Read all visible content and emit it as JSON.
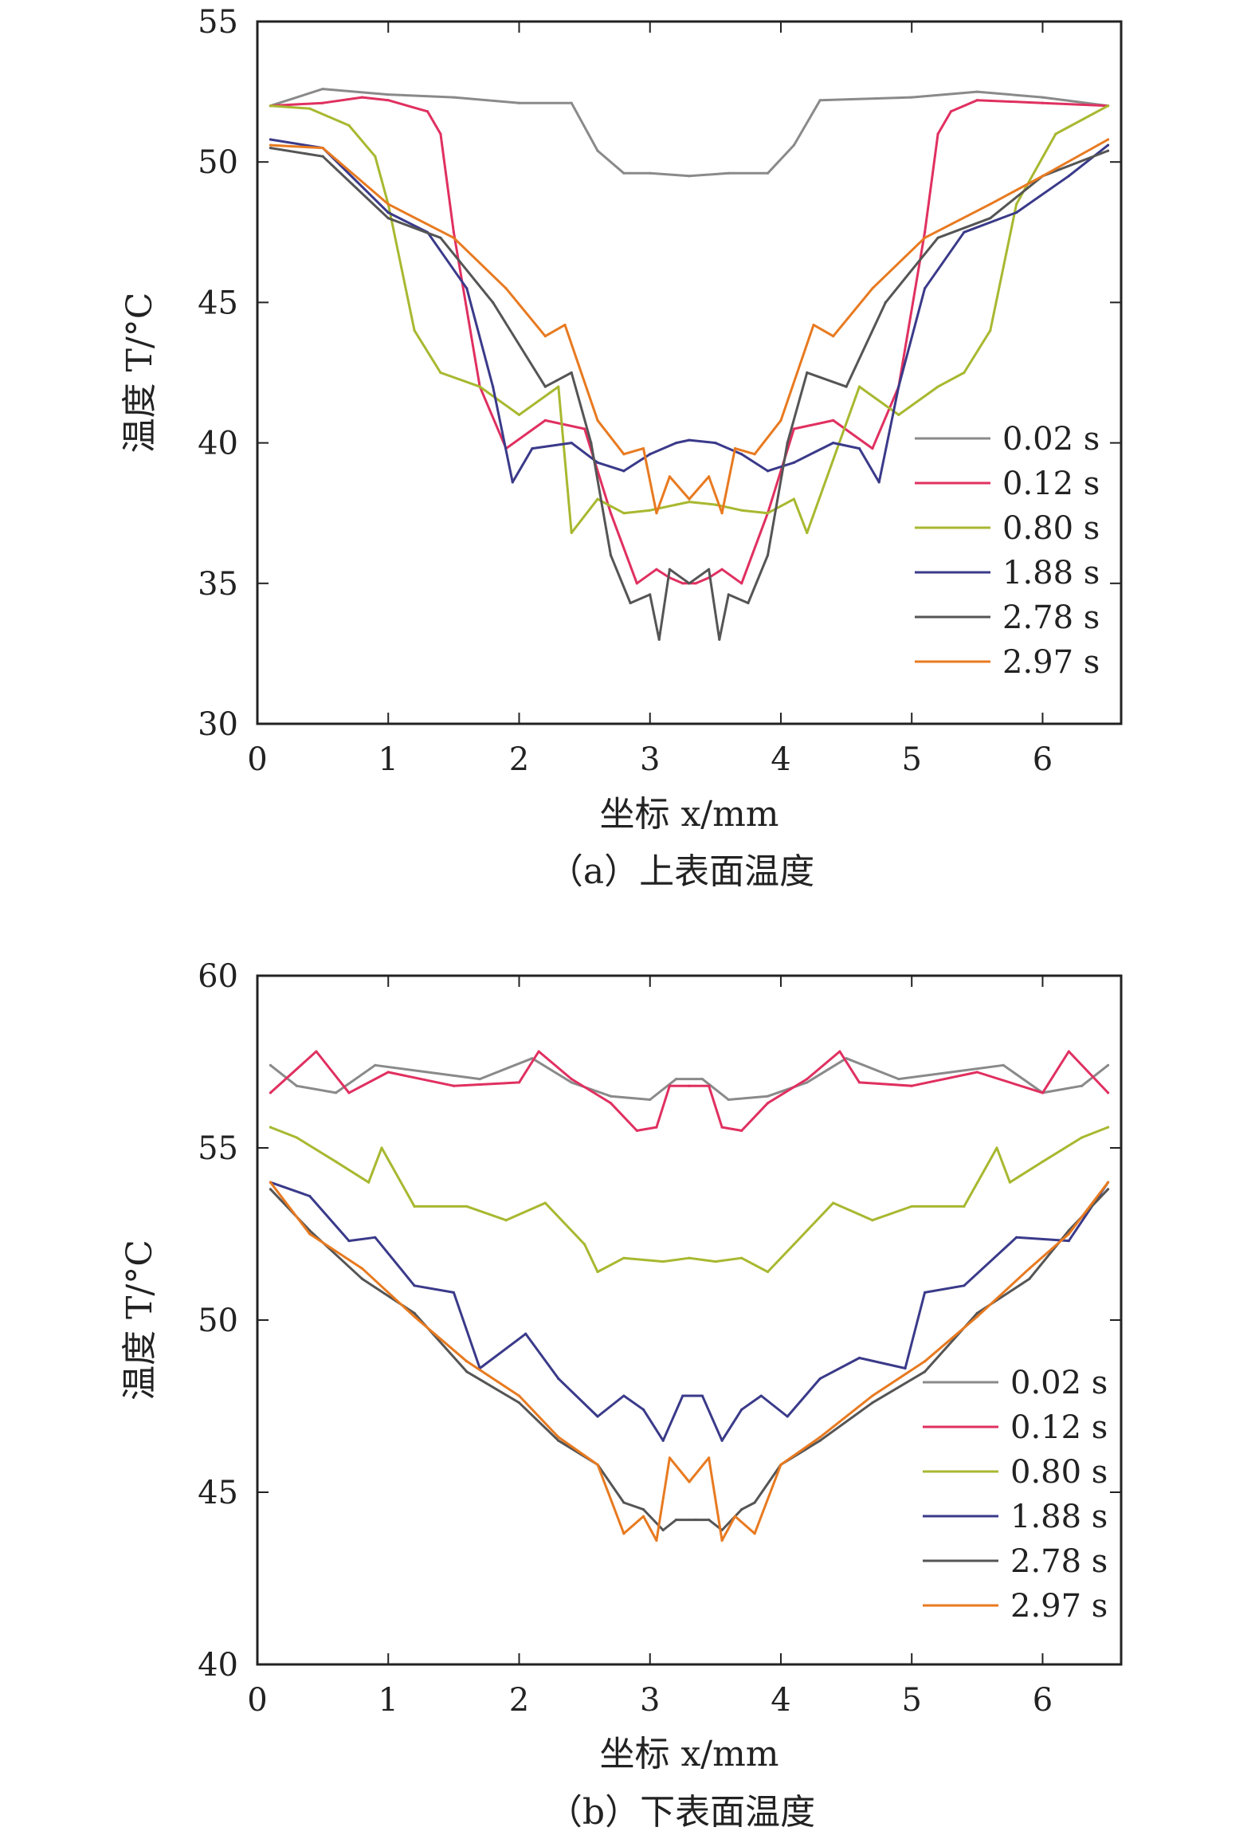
{
  "chart_data": [
    {
      "type": "line",
      "caption": "（a）上表面温度",
      "xlabel": "坐标 x/mm",
      "ylabel": "温度 T/°C",
      "xlim": [
        0,
        6.6
      ],
      "ylim": [
        30,
        55
      ],
      "xticks": [
        "0",
        "1",
        "2",
        "3",
        "4",
        "5",
        "6"
      ],
      "yticks": [
        "30",
        "35",
        "40",
        "45",
        "50",
        "55"
      ],
      "legend_position": "right",
      "series": [
        {
          "name": "0.02 s",
          "color": "#8a8a8a",
          "x": [
            0.1,
            0.5,
            1.0,
            1.5,
            2.0,
            2.4,
            2.6,
            2.8,
            3.0,
            3.3,
            3.6,
            3.9,
            4.1,
            4.3,
            5.0,
            5.5,
            6.0,
            6.5
          ],
          "y": [
            52.0,
            52.6,
            52.4,
            52.3,
            52.1,
            52.1,
            50.4,
            49.6,
            49.6,
            49.5,
            49.6,
            49.6,
            50.6,
            52.2,
            52.3,
            52.5,
            52.3,
            52.0
          ]
        },
        {
          "name": "0.12 s",
          "color": "#e03060",
          "x": [
            0.1,
            0.5,
            0.8,
            1.0,
            1.3,
            1.4,
            1.5,
            1.7,
            1.9,
            2.2,
            2.5,
            2.7,
            2.9,
            3.05,
            3.15,
            3.25,
            3.35,
            3.45,
            3.55,
            3.7,
            3.9,
            4.1,
            4.4,
            4.7,
            4.9,
            5.1,
            5.2,
            5.3,
            5.5,
            6.0,
            6.5
          ],
          "y": [
            52.0,
            52.1,
            52.3,
            52.2,
            51.8,
            51.0,
            47.5,
            42.0,
            39.8,
            40.8,
            40.5,
            37.5,
            35.0,
            35.5,
            35.2,
            35.0,
            35.0,
            35.2,
            35.5,
            35.0,
            37.5,
            40.5,
            40.8,
            39.8,
            42.0,
            47.5,
            51.0,
            51.8,
            52.2,
            52.1,
            52.0
          ]
        },
        {
          "name": "0.80 s",
          "color": "#a8b830",
          "x": [
            0.1,
            0.4,
            0.7,
            0.9,
            1.0,
            1.2,
            1.4,
            1.7,
            2.0,
            2.3,
            2.4,
            2.6,
            2.8,
            3.0,
            3.2,
            3.3,
            3.5,
            3.7,
            3.9,
            4.1,
            4.2,
            4.6,
            4.9,
            5.2,
            5.4,
            5.6,
            5.8,
            6.1,
            6.5
          ],
          "y": [
            52.0,
            51.9,
            51.3,
            50.2,
            48.5,
            44.0,
            42.5,
            42.0,
            41.0,
            42.0,
            36.8,
            38.0,
            37.5,
            37.6,
            37.8,
            37.9,
            37.8,
            37.6,
            37.5,
            38.0,
            36.8,
            42.0,
            41.0,
            42.0,
            42.5,
            44.0,
            48.5,
            51.0,
            52.0
          ]
        },
        {
          "name": "1.88 s",
          "color": "#3a3a8a",
          "x": [
            0.1,
            0.5,
            1.0,
            1.3,
            1.6,
            1.8,
            1.95,
            2.1,
            2.4,
            2.6,
            2.8,
            3.0,
            3.2,
            3.3,
            3.5,
            3.7,
            3.9,
            4.1,
            4.4,
            4.6,
            4.75,
            4.9,
            5.1,
            5.4,
            5.8,
            6.2,
            6.5
          ],
          "y": [
            50.8,
            50.5,
            48.2,
            47.5,
            45.5,
            42.0,
            38.6,
            39.8,
            40.0,
            39.3,
            39.0,
            39.6,
            40.0,
            40.1,
            40.0,
            39.6,
            39.0,
            39.3,
            40.0,
            39.8,
            38.6,
            42.0,
            45.5,
            47.5,
            48.2,
            49.5,
            50.6
          ]
        },
        {
          "name": "2.78 s",
          "color": "#555555",
          "x": [
            0.1,
            0.5,
            1.0,
            1.4,
            1.8,
            2.2,
            2.4,
            2.55,
            2.7,
            2.85,
            3.0,
            3.07,
            3.15,
            3.3,
            3.45,
            3.53,
            3.6,
            3.75,
            3.9,
            4.05,
            4.2,
            4.5,
            4.8,
            5.2,
            5.6,
            6.0,
            6.5
          ],
          "y": [
            50.5,
            50.2,
            48.0,
            47.3,
            45.0,
            42.0,
            42.5,
            40.0,
            36.0,
            34.3,
            34.6,
            33.0,
            35.5,
            35.0,
            35.5,
            33.0,
            34.6,
            34.3,
            36.0,
            40.0,
            42.5,
            42.0,
            45.0,
            47.3,
            48.0,
            49.5,
            50.4
          ]
        },
        {
          "name": "2.97 s",
          "color": "#e87a20",
          "x": [
            0.1,
            0.5,
            1.0,
            1.5,
            1.9,
            2.2,
            2.35,
            2.6,
            2.8,
            2.95,
            3.05,
            3.15,
            3.3,
            3.45,
            3.55,
            3.65,
            3.8,
            4.0,
            4.25,
            4.4,
            4.7,
            5.1,
            5.6,
            6.0,
            6.5
          ],
          "y": [
            50.6,
            50.5,
            48.5,
            47.3,
            45.5,
            43.8,
            44.2,
            40.8,
            39.6,
            39.8,
            37.5,
            38.8,
            38.0,
            38.8,
            37.5,
            39.8,
            39.6,
            40.8,
            44.2,
            43.8,
            45.5,
            47.3,
            48.5,
            49.5,
            50.8
          ]
        }
      ]
    },
    {
      "type": "line",
      "caption": "（b）下表面温度",
      "xlabel": "坐标 x/mm",
      "ylabel": "温度 T/°C",
      "xlim": [
        0,
        6.6
      ],
      "ylim": [
        40,
        60
      ],
      "xticks": [
        "0",
        "1",
        "2",
        "3",
        "4",
        "5",
        "6"
      ],
      "yticks": [
        "40",
        "45",
        "50",
        "55",
        "60"
      ],
      "legend_position": "right",
      "series": [
        {
          "name": "0.02 s",
          "color": "#8a8a8a",
          "x": [
            0.1,
            0.3,
            0.6,
            0.9,
            1.3,
            1.7,
            2.1,
            2.4,
            2.7,
            3.0,
            3.2,
            3.4,
            3.6,
            3.9,
            4.2,
            4.5,
            4.9,
            5.3,
            5.7,
            6.0,
            6.3,
            6.5
          ],
          "y": [
            57.4,
            56.8,
            56.6,
            57.4,
            57.2,
            57.0,
            57.6,
            56.9,
            56.5,
            56.4,
            57.0,
            57.0,
            56.4,
            56.5,
            56.9,
            57.6,
            57.0,
            57.2,
            57.4,
            56.6,
            56.8,
            57.4
          ]
        },
        {
          "name": "0.12 s",
          "color": "#e03060",
          "x": [
            0.1,
            0.45,
            0.7,
            1.0,
            1.5,
            2.0,
            2.15,
            2.4,
            2.7,
            2.9,
            3.05,
            3.15,
            3.3,
            3.45,
            3.55,
            3.7,
            3.9,
            4.2,
            4.45,
            4.6,
            5.0,
            5.5,
            6.0,
            6.2,
            6.5
          ],
          "y": [
            56.6,
            57.8,
            56.6,
            57.2,
            56.8,
            56.9,
            57.8,
            57.0,
            56.3,
            55.5,
            55.6,
            56.8,
            56.8,
            56.8,
            55.6,
            55.5,
            56.3,
            57.0,
            57.8,
            56.9,
            56.8,
            57.2,
            56.6,
            57.8,
            56.6
          ]
        },
        {
          "name": "0.80 s",
          "color": "#a8b830",
          "x": [
            0.1,
            0.3,
            0.6,
            0.85,
            0.95,
            1.2,
            1.6,
            1.9,
            2.2,
            2.5,
            2.6,
            2.8,
            3.1,
            3.3,
            3.5,
            3.7,
            3.9,
            4.1,
            4.4,
            4.7,
            5.0,
            5.4,
            5.65,
            5.75,
            6.0,
            6.3,
            6.5
          ],
          "y": [
            55.6,
            55.3,
            54.6,
            54.0,
            55.0,
            53.3,
            53.3,
            52.9,
            53.4,
            52.2,
            51.4,
            51.8,
            51.7,
            51.8,
            51.7,
            51.8,
            51.4,
            52.2,
            53.4,
            52.9,
            53.3,
            53.3,
            55.0,
            54.0,
            54.6,
            55.3,
            55.6
          ]
        },
        {
          "name": "1.88 s",
          "color": "#3a3a8a",
          "x": [
            0.1,
            0.4,
            0.7,
            0.9,
            1.2,
            1.5,
            1.7,
            2.05,
            2.3,
            2.6,
            2.8,
            2.95,
            3.1,
            3.25,
            3.4,
            3.55,
            3.7,
            3.85,
            4.05,
            4.3,
            4.6,
            4.95,
            5.1,
            5.4,
            5.8,
            6.2,
            6.5
          ],
          "y": [
            54.0,
            53.6,
            52.3,
            52.4,
            51.0,
            50.8,
            48.6,
            49.6,
            48.3,
            47.2,
            47.8,
            47.4,
            46.5,
            47.8,
            47.8,
            46.5,
            47.4,
            47.8,
            47.2,
            48.3,
            48.9,
            48.6,
            50.8,
            51.0,
            52.4,
            52.3,
            54.0
          ]
        },
        {
          "name": "2.78 s",
          "color": "#555555",
          "x": [
            0.1,
            0.4,
            0.8,
            1.2,
            1.6,
            2.0,
            2.3,
            2.6,
            2.8,
            2.95,
            3.1,
            3.2,
            3.35,
            3.45,
            3.55,
            3.7,
            3.8,
            4.0,
            4.3,
            4.7,
            5.1,
            5.5,
            5.9,
            6.2,
            6.5
          ],
          "y": [
            53.8,
            52.6,
            51.2,
            50.2,
            48.5,
            47.6,
            46.5,
            45.8,
            44.7,
            44.5,
            43.9,
            44.2,
            44.2,
            44.2,
            43.9,
            44.5,
            44.7,
            45.8,
            46.5,
            47.6,
            48.5,
            50.2,
            51.2,
            52.6,
            53.8
          ]
        },
        {
          "name": "2.97 s",
          "color": "#e87a20",
          "x": [
            0.1,
            0.4,
            0.8,
            1.2,
            1.6,
            2.0,
            2.3,
            2.6,
            2.8,
            2.95,
            3.05,
            3.15,
            3.3,
            3.45,
            3.55,
            3.65,
            3.8,
            4.0,
            4.3,
            4.7,
            5.1,
            5.5,
            5.9,
            6.2,
            6.5
          ],
          "y": [
            54.0,
            52.5,
            51.5,
            50.1,
            48.8,
            47.8,
            46.6,
            45.8,
            43.8,
            44.3,
            43.6,
            46.0,
            45.3,
            46.0,
            43.6,
            44.3,
            43.8,
            45.8,
            46.6,
            47.8,
            48.8,
            50.1,
            51.5,
            52.5,
            54.0
          ]
        }
      ]
    }
  ]
}
